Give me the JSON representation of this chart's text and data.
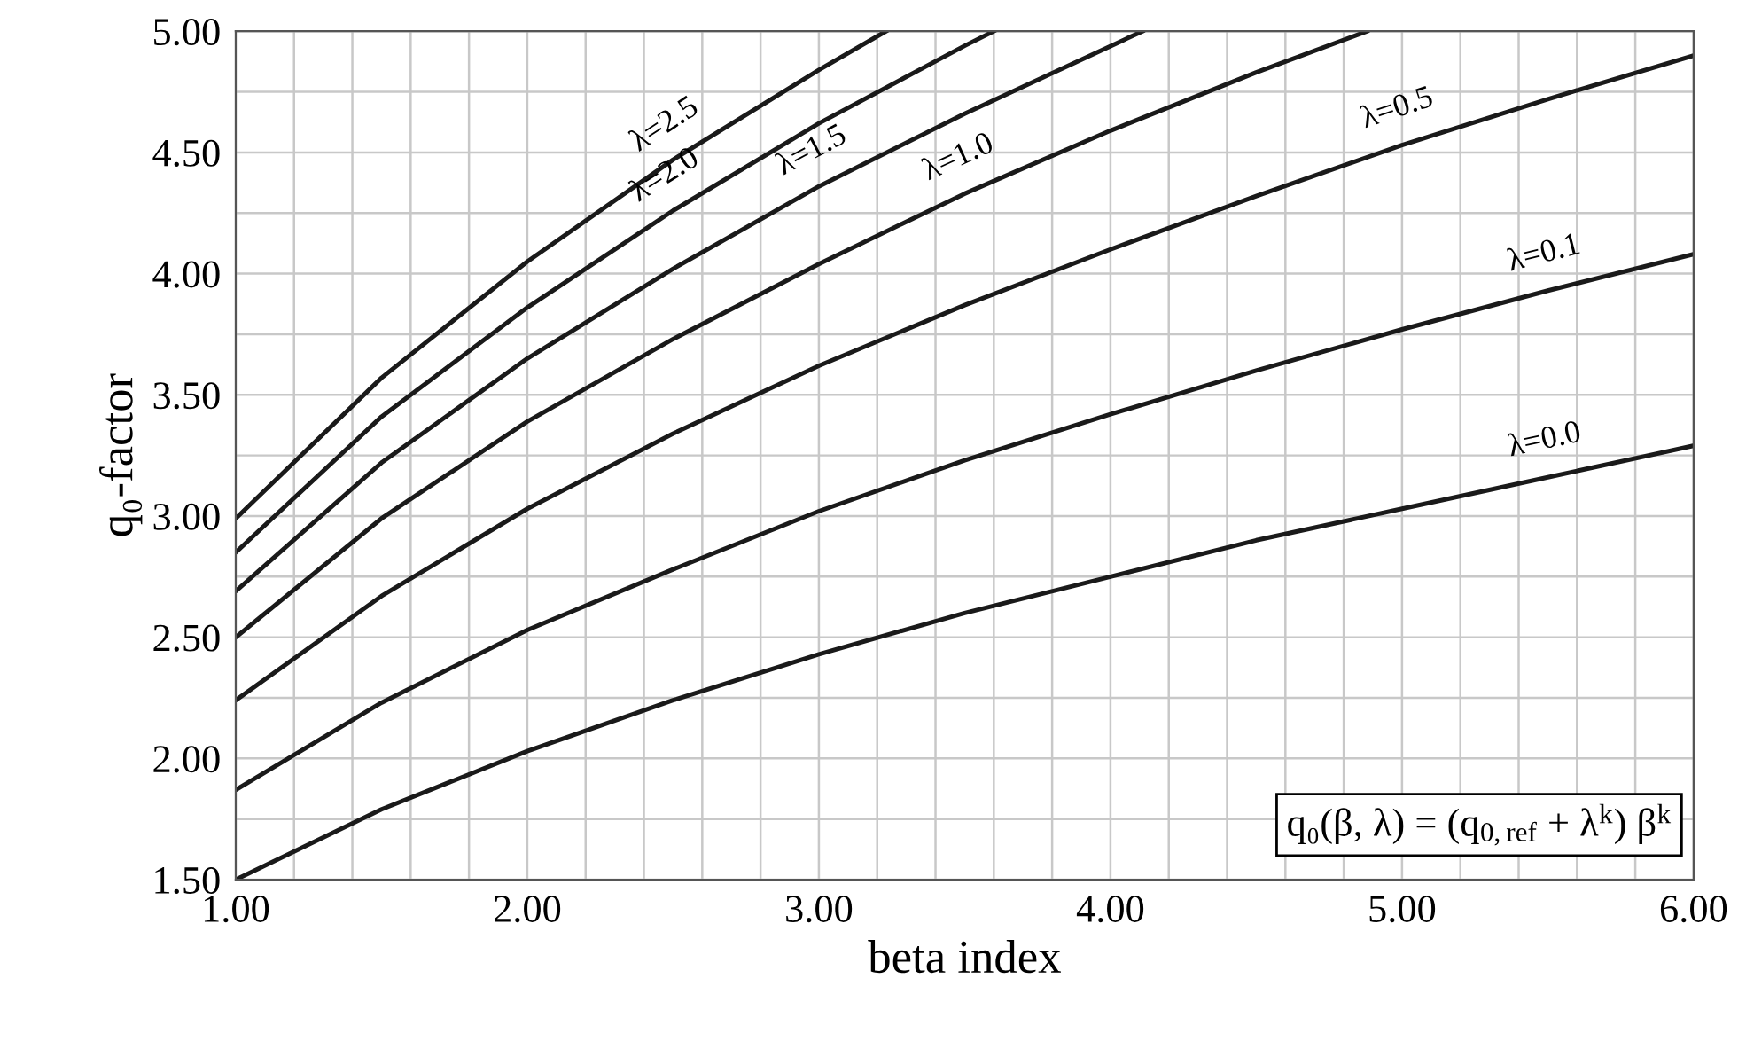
{
  "chart_data": {
    "type": "line",
    "xlabel": "beta index",
    "ylabel": "q₀-factor",
    "xlim": [
      1.0,
      6.0
    ],
    "ylim": [
      1.5,
      5.0
    ],
    "xticks": [
      {
        "value": 1.0,
        "label": "1.00"
      },
      {
        "value": 1.2,
        "label": null
      },
      {
        "value": 1.4,
        "label": null
      },
      {
        "value": 1.6,
        "label": null
      },
      {
        "value": 1.8,
        "label": null
      },
      {
        "value": 2.0,
        "label": "2.00"
      },
      {
        "value": 2.2,
        "label": null
      },
      {
        "value": 2.4,
        "label": null
      },
      {
        "value": 2.6,
        "label": null
      },
      {
        "value": 2.8,
        "label": null
      },
      {
        "value": 3.0,
        "label": "3.00"
      },
      {
        "value": 3.2,
        "label": null
      },
      {
        "value": 3.4,
        "label": null
      },
      {
        "value": 3.6,
        "label": null
      },
      {
        "value": 3.8,
        "label": null
      },
      {
        "value": 4.0,
        "label": "4.00"
      },
      {
        "value": 4.2,
        "label": null
      },
      {
        "value": 4.4,
        "label": null
      },
      {
        "value": 4.6,
        "label": null
      },
      {
        "value": 4.8,
        "label": null
      },
      {
        "value": 5.0,
        "label": "5.00"
      },
      {
        "value": 5.2,
        "label": null
      },
      {
        "value": 5.4,
        "label": null
      },
      {
        "value": 5.6,
        "label": null
      },
      {
        "value": 5.8,
        "label": null
      },
      {
        "value": 6.0,
        "label": "6.00"
      }
    ],
    "yticks": [
      {
        "value": 1.5,
        "label": "1.50"
      },
      {
        "value": 1.75,
        "label": null
      },
      {
        "value": 2.0,
        "label": "2.00"
      },
      {
        "value": 2.25,
        "label": null
      },
      {
        "value": 2.5,
        "label": "2.50"
      },
      {
        "value": 2.75,
        "label": null
      },
      {
        "value": 3.0,
        "label": "3.00"
      },
      {
        "value": 3.25,
        "label": null
      },
      {
        "value": 3.5,
        "label": "3.50"
      },
      {
        "value": 3.75,
        "label": null
      },
      {
        "value": 4.0,
        "label": "4.00"
      },
      {
        "value": 4.25,
        "label": null
      },
      {
        "value": 4.5,
        "label": "4.50"
      },
      {
        "value": 4.75,
        "label": null
      },
      {
        "value": 5.0,
        "label": "5.00"
      }
    ],
    "grid": true,
    "legend": false,
    "marker": "none",
    "line_style": "solid",
    "series": [
      {
        "name": "λ=2.5",
        "color": "#1a1a1a",
        "x": [
          1.0,
          1.5,
          2.0,
          2.5,
          3.0,
          3.23
        ],
        "values": [
          2.99,
          3.57,
          4.05,
          4.47,
          4.84,
          5.0
        ]
      },
      {
        "name": "λ=2.0",
        "color": "#1a1a1a",
        "x": [
          1.0,
          1.5,
          2.0,
          2.5,
          3.0,
          3.5,
          3.6
        ],
        "values": [
          2.85,
          3.41,
          3.86,
          4.26,
          4.62,
          4.94,
          5.0
        ]
      },
      {
        "name": "λ=1.5",
        "color": "#1a1a1a",
        "x": [
          1.0,
          1.5,
          2.0,
          2.5,
          3.0,
          3.5,
          4.11
        ],
        "values": [
          2.69,
          3.22,
          3.65,
          4.02,
          4.36,
          4.66,
          5.0
        ]
      },
      {
        "name": "λ=1.0",
        "color": "#1a1a1a",
        "x": [
          1.0,
          1.5,
          2.0,
          2.5,
          3.0,
          3.5,
          4.0,
          4.5,
          4.88
        ],
        "values": [
          2.5,
          2.99,
          3.39,
          3.73,
          4.04,
          4.33,
          4.59,
          4.83,
          5.0
        ]
      },
      {
        "name": "λ=0.5",
        "color": "#1a1a1a",
        "x": [
          1.0,
          1.5,
          2.0,
          2.5,
          3.0,
          3.5,
          4.0,
          4.5,
          5.0,
          5.5,
          6.0
        ],
        "values": [
          2.24,
          2.67,
          3.03,
          3.34,
          3.62,
          3.87,
          4.1,
          4.32,
          4.53,
          4.72,
          4.9
        ]
      },
      {
        "name": "λ=0.1",
        "color": "#1a1a1a",
        "x": [
          1.0,
          1.5,
          2.0,
          2.5,
          3.0,
          3.5,
          4.0,
          4.5,
          5.0,
          5.5,
          6.0
        ],
        "values": [
          1.87,
          2.23,
          2.53,
          2.78,
          3.02,
          3.23,
          3.42,
          3.6,
          3.77,
          3.93,
          4.08
        ]
      },
      {
        "name": "λ=0.0",
        "color": "#1a1a1a",
        "x": [
          1.0,
          1.5,
          2.0,
          2.5,
          3.0,
          3.5,
          4.0,
          4.5,
          5.0,
          5.5,
          6.0
        ],
        "values": [
          1.5,
          1.79,
          2.03,
          2.24,
          2.43,
          2.6,
          2.75,
          2.9,
          3.03,
          3.16,
          3.29
        ]
      }
    ],
    "annotations": [
      "q₀(β, λ) = (q$_{0,ref}$ + λ$^{k}$) β$^{k}$"
    ]
  }
}
